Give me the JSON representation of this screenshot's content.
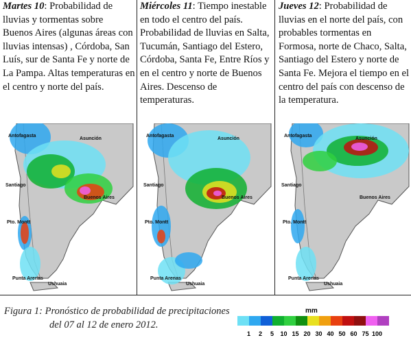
{
  "columns": [
    {
      "day": "Martes 10",
      "text": ": Probabilidad de lluvias y tormentas sobre Buenos Aires (algunas áreas con lluvias intensas) , Córdoba, San Luís, sur de Santa Fe y norte de La Pampa. Altas temperaturas en el centro y norte del país."
    },
    {
      "day": "Miércoles 11",
      "text": ": Tiempo inestable en todo el centro del país. Probabilidad de lluvias en Salta, Tucumán, Santiago del Estero, Córdoba, Santa Fe, Entre Ríos y en el centro y norte de Buenos Aires. Descenso de temperaturas."
    },
    {
      "day": "Jueves 12",
      "text": ": Probabilidad de lluvias en el norte del país, con probables tormentas en Formosa, norte de Chaco, Salta, Santiago del Estero y norte de Santa Fe. Mejora el tiempo en el centro del país con descenso de la temperatura."
    }
  ],
  "maps": [
    {
      "labels": [
        "Antofagasta",
        "Asunción",
        "Santiago",
        "Buenos Aires",
        "Pto. Montt",
        "Punta Arenas",
        "Ushuaia"
      ]
    },
    {
      "labels": [
        "Antofagasta",
        "Asunción",
        "Santiago",
        "Buenos Aires",
        "Pto. Montt",
        "Punta Arenas",
        "Ushuaia"
      ]
    },
    {
      "labels": [
        "Antofagasta",
        "Asunción",
        "Santiago",
        "Buenos Aires",
        "Pto. Montt",
        "Punta Arenas",
        "Ushuaia"
      ]
    }
  ],
  "caption": {
    "line1": "Figura 1: Pronóstico de probabilidad de precipitaciones",
    "line2": "del 07 al 12 de enero 2012."
  },
  "legend": {
    "unit": "mm",
    "values": [
      1,
      2,
      5,
      10,
      15,
      20,
      30,
      40,
      50,
      60,
      75,
      100
    ],
    "colors": [
      "#6ee0f5",
      "#2fa8f0",
      "#1060d8",
      "#10b030",
      "#30d040",
      "#109010",
      "#e8e020",
      "#f0a010",
      "#e84010",
      "#c01010",
      "#901010",
      "#f060f0",
      "#b040c0"
    ]
  }
}
